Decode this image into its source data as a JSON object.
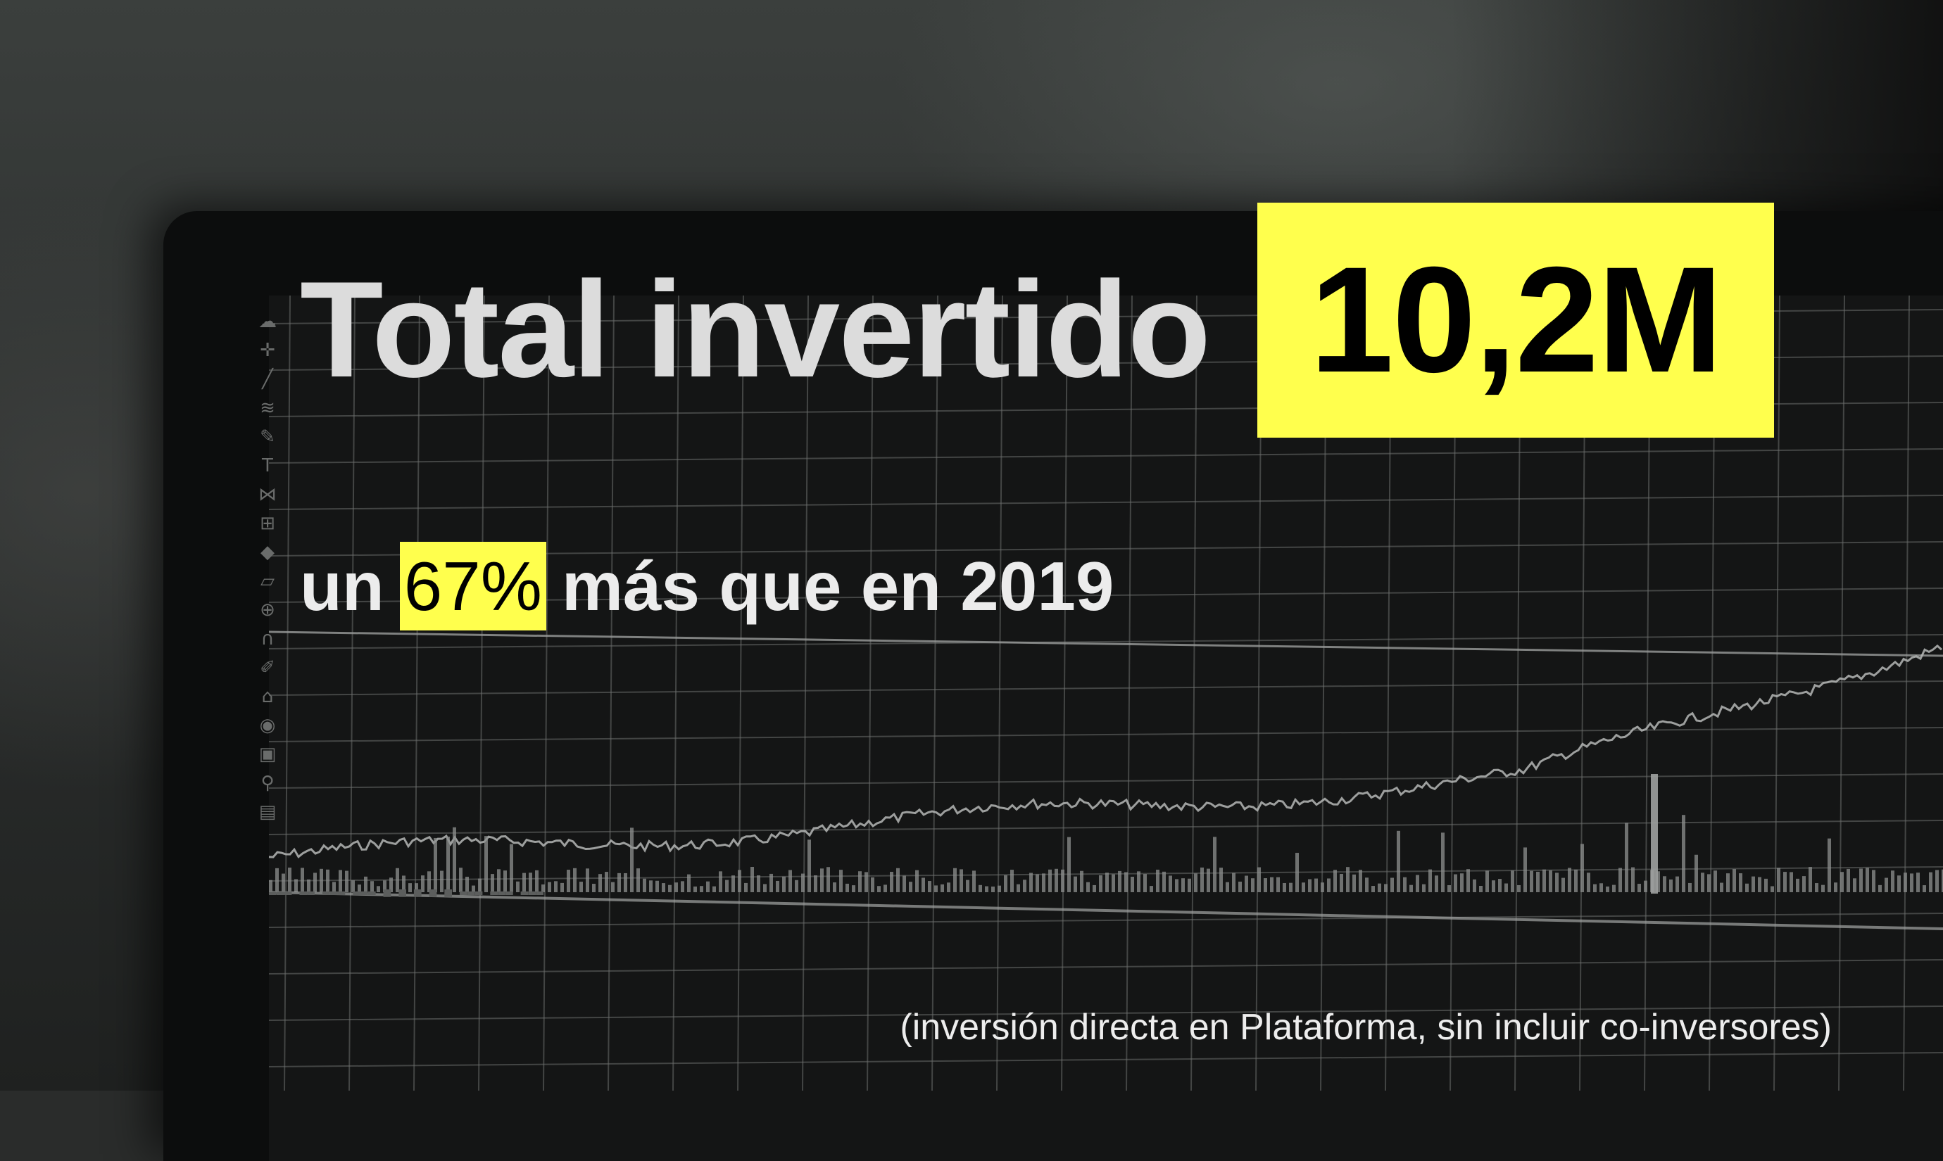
{
  "headline": {
    "title": "Total invertido",
    "amount": "10,2M"
  },
  "comparison": {
    "prefix": "un",
    "percent": "67%",
    "suffix": "más que en 2019"
  },
  "footnote": "(inversión directa en Plataforma, sin incluir co-inversores)",
  "background_chart": {
    "toolbar_icons": [
      "cloud-icon",
      "crosshair-icon",
      "trend-line-icon",
      "fibonacci-icon",
      "brush-icon",
      "text-icon",
      "pattern-icon",
      "measure-icon",
      "diamond-icon",
      "ruler-icon",
      "zoom-icon",
      "magnet-icon",
      "lock-draw-icon",
      "lock-icon",
      "eye-icon",
      "square-icon",
      "pin-icon",
      "trash-icon"
    ]
  },
  "colors": {
    "highlight": "#ffff4d",
    "title_text": "#dcdcdc",
    "amount_text": "#000000",
    "background": "#141515"
  }
}
